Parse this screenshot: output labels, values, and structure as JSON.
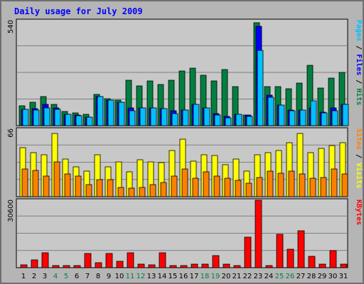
{
  "colors": {
    "pages": "#00c0ff",
    "files": "#0000ff",
    "hits": "#008040",
    "sites": "#ff8000",
    "visits": "#ffff00",
    "kbytes": "#ff0000",
    "title": "#0000ff",
    "weekend": "#008040",
    "weekday": "#000000"
  },
  "chart_data": {
    "type": "bar",
    "title": "Daily usage for July 2009",
    "categories": [
      "1",
      "2",
      "3",
      "4",
      "5",
      "6",
      "7",
      "8",
      "9",
      "10",
      "11",
      "12",
      "13",
      "14",
      "15",
      "16",
      "17",
      "18",
      "19",
      "20",
      "21",
      "22",
      "23",
      "24",
      "25",
      "26",
      "27",
      "28",
      "29",
      "30",
      "31"
    ],
    "weekend_days": [
      "4",
      "5",
      "11",
      "12",
      "18",
      "19",
      "25",
      "26"
    ],
    "panels": [
      {
        "id": "hits",
        "ymax_label": "540",
        "ylim": [
          0,
          540
        ],
        "ylabel_parts": [
          {
            "text": "Pages",
            "color": "#00c0ff"
          },
          {
            "text": " / ",
            "color": "#000000"
          },
          {
            "text": "Files",
            "color": "#0000ff"
          },
          {
            "text": " / ",
            "color": "#000000"
          },
          {
            "text": "Hits",
            "color": "#008040"
          }
        ],
        "series": [
          {
            "name": "Hits",
            "color": "#008040",
            "values": [
              102,
              122,
              148,
              108,
              72,
              65,
              60,
              162,
              140,
              133,
              235,
              205,
              230,
              210,
              235,
              280,
              295,
              260,
              230,
              287,
              200,
              55,
              530,
              200,
              200,
              190,
              220,
              310,
              195,
              245,
              275
            ]
          },
          {
            "name": "Files",
            "color": "#0000ff",
            "values": [
              85,
              88,
              108,
              92,
              60,
              55,
              42,
              150,
              130,
              120,
              90,
              90,
              90,
              88,
              75,
              80,
              110,
              90,
              62,
              48,
              58,
              55,
              510,
              158,
              105,
              82,
              80,
              90,
              70,
              90,
              110
            ]
          },
          {
            "name": "Pages",
            "color": "#00c0ff",
            "values": [
              85,
              80,
              90,
              85,
              58,
              50,
              42,
              148,
              130,
              120,
              75,
              90,
              90,
              88,
              62,
              80,
              108,
              90,
              55,
              40,
              58,
              48,
              388,
              145,
              105,
              78,
              80,
              128,
              65,
              75,
              110
            ]
          }
        ]
      },
      {
        "id": "visits",
        "ymax_label": "66",
        "ylim": [
          0,
          66
        ],
        "ylabel_parts": [
          {
            "text": "Sites",
            "color": "#ff8000"
          },
          {
            "text": " / ",
            "color": "#000000"
          },
          {
            "text": "Visits",
            "color": "#ffff00"
          }
        ],
        "series": [
          {
            "name": "Visits",
            "color": "#ffff00",
            "values": [
              48,
              43,
              41,
              62,
              37,
              29,
              25,
              41,
              29,
              34,
              24,
              36,
              34,
              33,
              45,
              56,
              35,
              41,
              40,
              31,
              37,
              25,
              41,
              43,
              45,
              53,
              62,
              43,
              47,
              50,
              53
            ]
          },
          {
            "name": "Sites",
            "color": "#ff8000",
            "values": [
              27,
              26,
              20,
              34,
              22,
              20,
              12,
              17,
              17,
              9,
              8,
              9,
              12,
              14,
              20,
              27,
              18,
              24,
              20,
              18,
              16,
              13,
              19,
              25,
              23,
              25,
              22,
              18,
              19,
              27,
              22
            ]
          }
        ]
      },
      {
        "id": "kbytes",
        "ymax_label": "30600",
        "ylim": [
          0,
          30600
        ],
        "ylabel_parts": [
          {
            "text": "KBytes",
            "color": "#ff0000"
          }
        ],
        "series": [
          {
            "name": "KBytes",
            "color": "#ff0000",
            "values": [
              1200,
              3400,
              6800,
              1100,
              1100,
              1000,
              6400,
              2200,
              6500,
              2900,
              6700,
              1500,
              1400,
              6800,
              900,
              1100,
              1700,
              1600,
              5600,
              1600,
              1000,
              13900,
              30600,
              1100,
              15200,
              8300,
              16700,
              5200,
              1500,
              7800,
              1500
            ]
          }
        ]
      }
    ]
  }
}
